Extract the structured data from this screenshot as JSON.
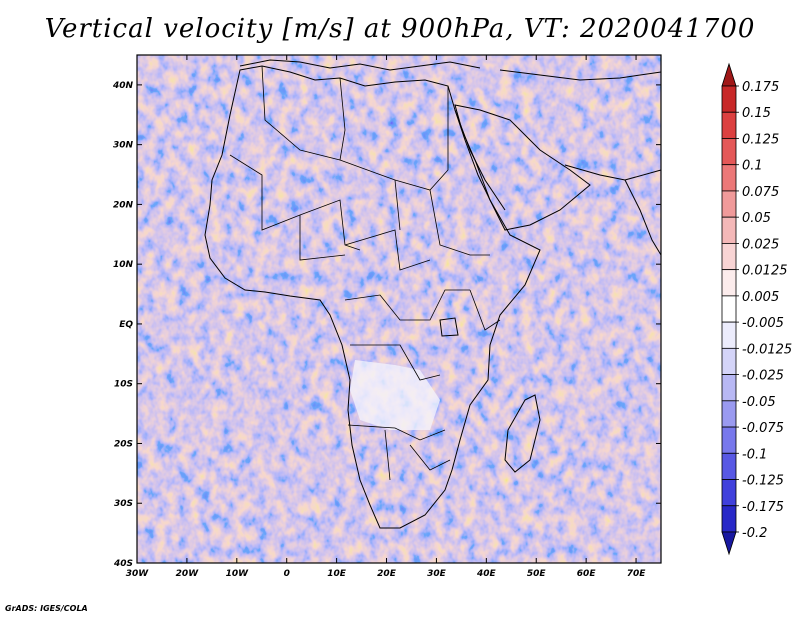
{
  "title": "Vertical velocity [m/s] at 900hPa, VT: 2020041700",
  "footer": "GrADS: IGES/COLA",
  "map": {
    "variable": "Vertical velocity",
    "units": "m/s",
    "level": "900hPa",
    "valid_time": "2020041700",
    "lon_range": [
      -30,
      75
    ],
    "lat_range": [
      -40,
      45
    ]
  },
  "x_ticks": [
    "30W",
    "20W",
    "10W",
    "0",
    "10E",
    "20E",
    "30E",
    "40E",
    "50E",
    "60E",
    "70E"
  ],
  "y_ticks": [
    "40N",
    "30N",
    "20N",
    "10N",
    "EQ",
    "10S",
    "20S",
    "30S",
    "40S"
  ],
  "colorbar": {
    "labels": [
      "0.175",
      "0.15",
      "0.125",
      "0.1",
      "0.075",
      "0.05",
      "0.025",
      "0.0125",
      "0.005",
      "-0.005",
      "-0.0125",
      "-0.025",
      "-0.05",
      "-0.075",
      "-0.1",
      "-0.125",
      "-0.175",
      "-0.2"
    ],
    "colors": [
      "#a01818",
      "#c82828",
      "#dc4040",
      "#e45858",
      "#ec7878",
      "#f09a9a",
      "#f4b8b8",
      "#f8d4d4",
      "#fcecec",
      "#ffffff",
      "#ececfc",
      "#d4d4f8",
      "#b8b8f4",
      "#9a9af0",
      "#7878ec",
      "#5858e4",
      "#4040dc",
      "#2828c8",
      "#1818a0"
    ]
  },
  "colors": {
    "positive": "#d03030",
    "negative": "#3030d0",
    "background": "#ffffff"
  }
}
